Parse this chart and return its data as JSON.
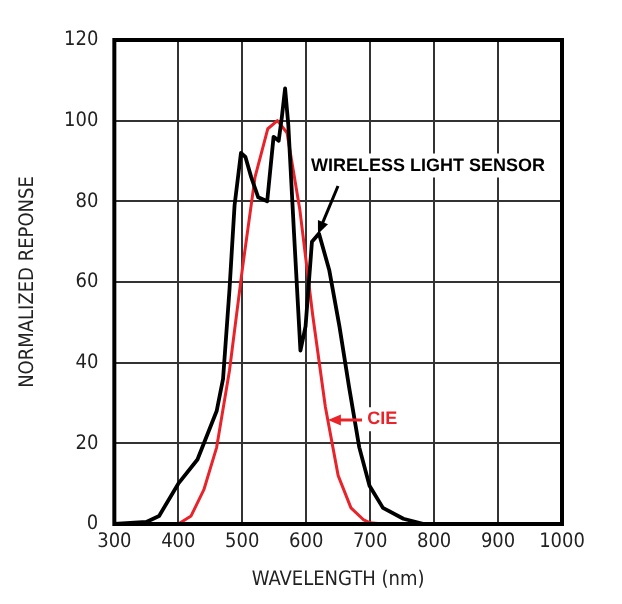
{
  "chart_data": {
    "type": "line",
    "xlabel": "WAVELENGTH (nm)",
    "ylabel": "NORMALIZED REPONSE",
    "xlim": [
      300,
      1000
    ],
    "xticks": [
      300,
      400,
      500,
      600,
      700,
      800,
      900,
      1000
    ],
    "ylim": [
      0,
      120
    ],
    "yticks": [
      0,
      20,
      40,
      60,
      80,
      100,
      120
    ],
    "grid": true,
    "legend": false,
    "marker": "none",
    "series": [
      {
        "color": "#000000",
        "x": [
          300,
          350,
          370,
          400,
          430,
          460,
          470,
          480,
          488,
          498,
          505,
          514,
          525,
          539,
          549,
          557,
          562,
          567,
          572,
          581,
          591,
          599,
          609,
          620,
          636,
          652,
          667,
          683,
          699,
          720,
          752,
          784,
          1000
        ],
        "values": [
          0,
          0.5,
          2,
          10,
          16,
          28,
          36,
          58,
          79,
          92,
          91,
          86,
          81,
          80,
          96,
          95,
          101,
          108,
          99,
          72,
          43,
          49,
          70,
          72,
          63,
          49,
          34,
          19,
          9.5,
          4,
          1.3,
          0,
          0
        ]
      },
      {
        "color": "#e8232a",
        "x": [
          300,
          400,
          420,
          440,
          460,
          480,
          500,
          520,
          540,
          555,
          570,
          590,
          610,
          630,
          650,
          670,
          690,
          700,
          720,
          1000
        ],
        "values": [
          0,
          0,
          2,
          8.5,
          19,
          38,
          63,
          86,
          98,
          100,
          97,
          78,
          52,
          29,
          12,
          4,
          1,
          0.3,
          0,
          0
        ]
      }
    ],
    "annotations": [
      {
        "text": "WIRELESS LIGHT SENSOR",
        "x": 620,
        "y": 72
      },
      {
        "text": "CIE",
        "x": 633,
        "y": 26
      }
    ]
  }
}
